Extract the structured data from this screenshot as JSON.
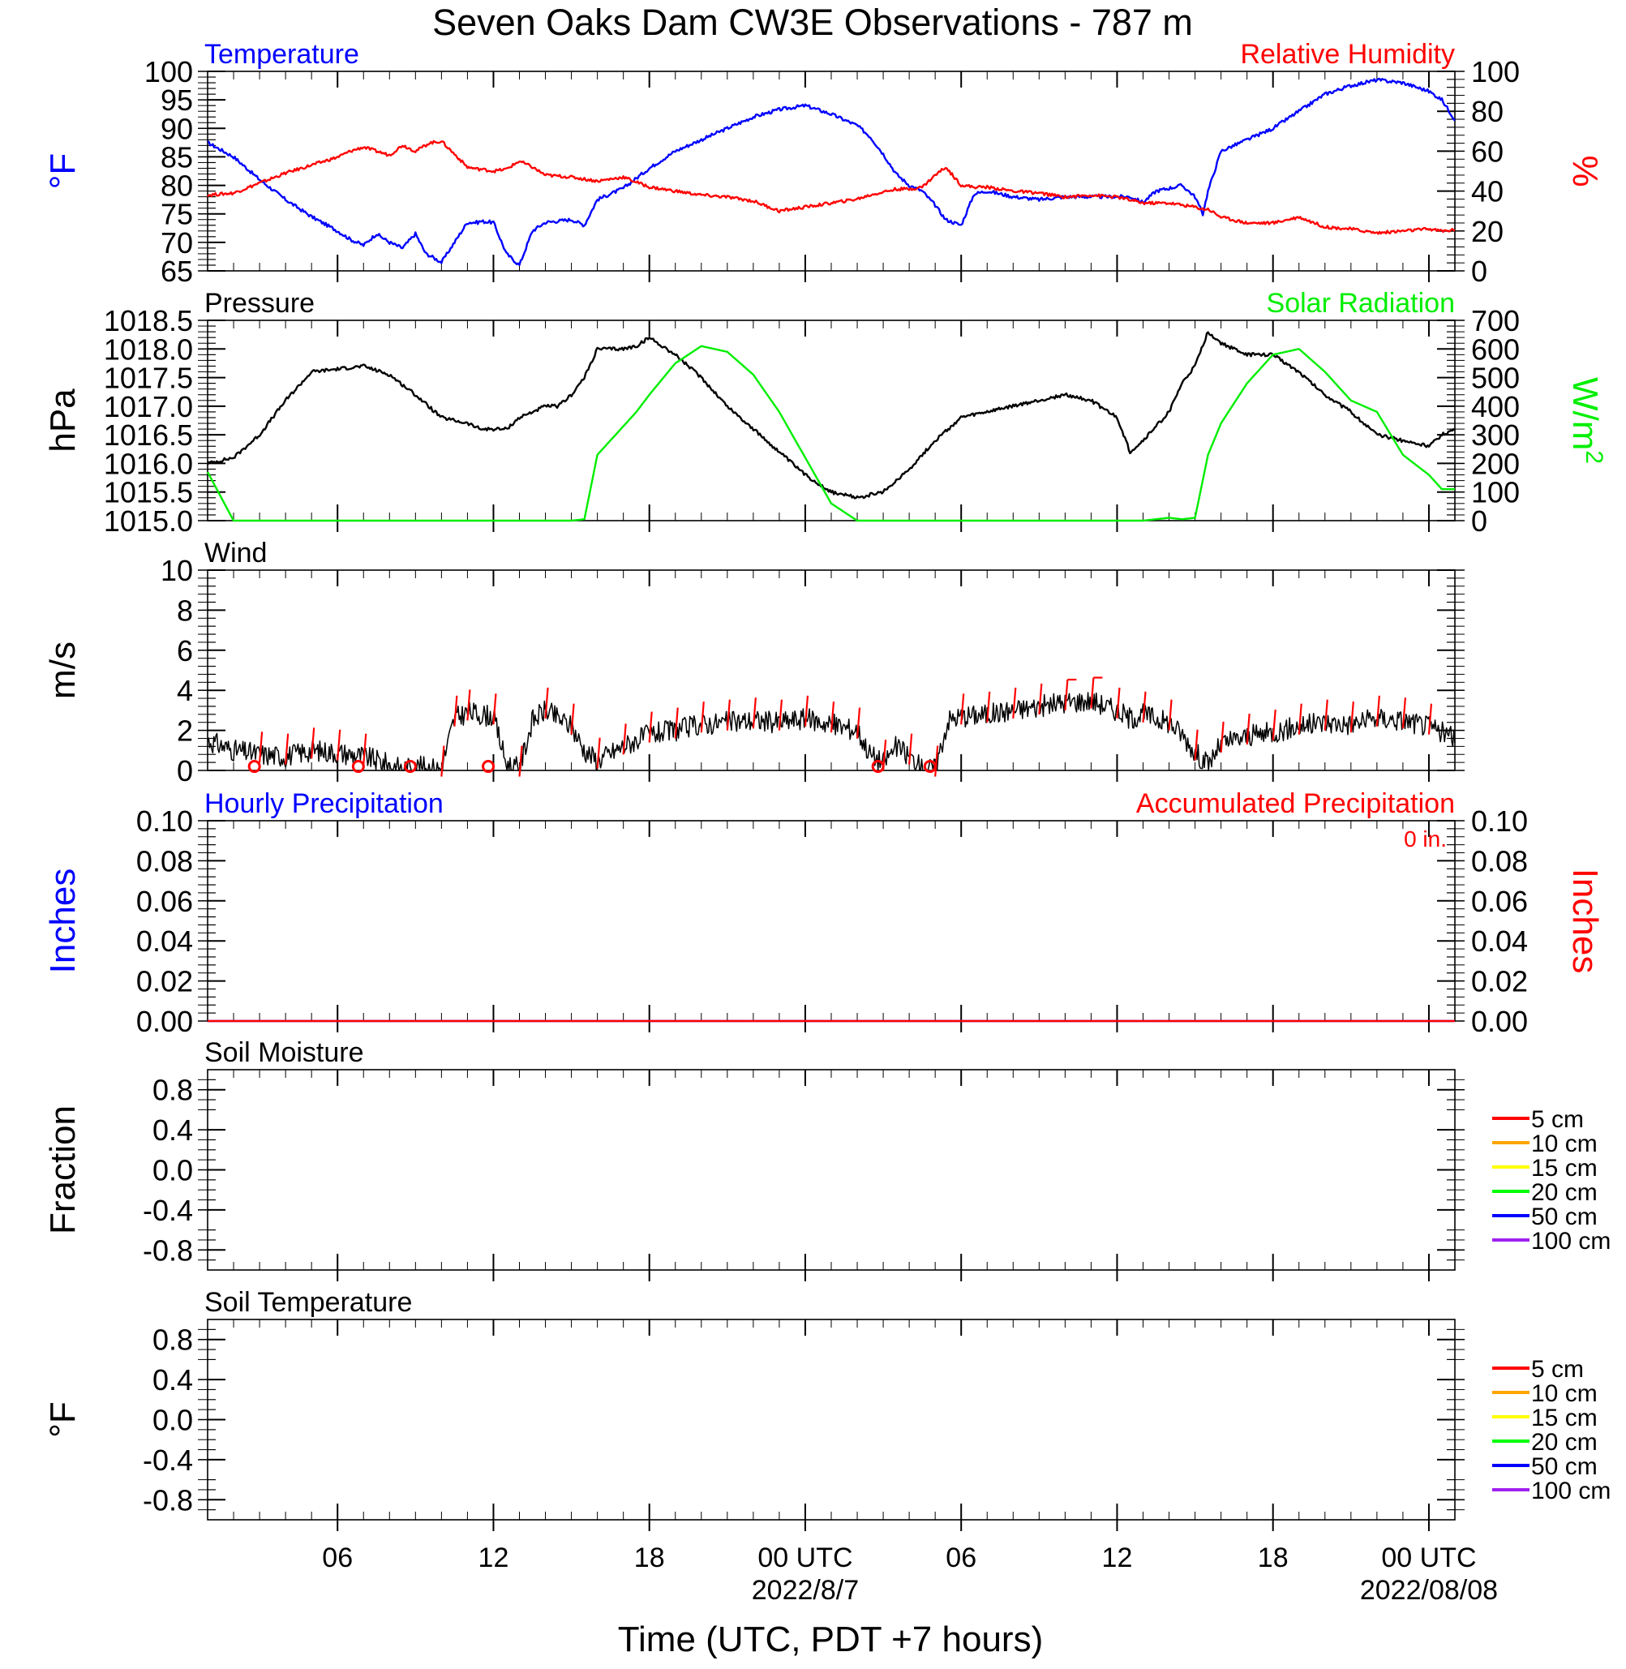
{
  "title": "Seven Oaks Dam CW3E Observations - 787 m",
  "xaxis": {
    "label": "Time (UTC, PDT +7 hours)",
    "range_hours": [
      0,
      48
    ],
    "ticks": [
      {
        "hour": 5,
        "label": "06"
      },
      {
        "hour": 11,
        "label": "12"
      },
      {
        "hour": 17,
        "label": "18"
      },
      {
        "hour": 23,
        "label": "00 UTC"
      },
      {
        "hour": 29,
        "label": "06"
      },
      {
        "hour": 35,
        "label": "12"
      },
      {
        "hour": 41,
        "label": "18"
      },
      {
        "hour": 47,
        "label": "00 UTC"
      }
    ],
    "date_labels": [
      {
        "hour": 23,
        "label": "2022/8/7"
      },
      {
        "hour": 47,
        "label": "2022/08/08"
      }
    ]
  },
  "colors": {
    "temperature": "#0000ff",
    "relative_humidity": "#ff0000",
    "pressure": "#000000",
    "solar_radiation": "#00ee00",
    "wind": "#000000",
    "wind_barbs": "#ff0000",
    "hourly_precip": "#0000ff",
    "accumulated_precip": "#ff0000"
  },
  "chart_data": [
    {
      "type": "line",
      "panel": "temperature-humidity",
      "left_title": "Temperature",
      "right_title": "Relative Humidity",
      "ylabel": "°F",
      "ylabel_right": "%",
      "ylim": [
        65,
        100
      ],
      "yticks": [
        "65",
        "70",
        "75",
        "80",
        "85",
        "90",
        "95",
        "100"
      ],
      "ylim_right": [
        0,
        100
      ],
      "yticks_right": [
        "0",
        "20",
        "40",
        "60",
        "80",
        "100"
      ],
      "x_hours": [
        0,
        1,
        2,
        3,
        4,
        5,
        5.5,
        6,
        6.5,
        7,
        7.5,
        8,
        8.4,
        8.5,
        9,
        10,
        10.4,
        10.5,
        11,
        11.5,
        12,
        12.5,
        13,
        14,
        14.5,
        15,
        16,
        17,
        18,
        19,
        20,
        21,
        22,
        23,
        24,
        25,
        25.5,
        26,
        26.5,
        27,
        27.5,
        28,
        28.4,
        29,
        29.5,
        30,
        31,
        32,
        33,
        34,
        35,
        35.5,
        36,
        36.5,
        37,
        37.5,
        38,
        38.3,
        38.5,
        39,
        40,
        41,
        42,
        43,
        44,
        45,
        46,
        47,
        47.5,
        48
      ],
      "series": [
        {
          "name": "Temperature",
          "axis": "left",
          "values": [
            87.5,
            85,
            81,
            77.5,
            74.5,
            72,
            70.5,
            69.5,
            71.5,
            70,
            69,
            71.5,
            68,
            67.8,
            66.5,
            73.5,
            73.5,
            73.7,
            73.5,
            68,
            66,
            72,
            73.5,
            74,
            73,
            77.5,
            79.5,
            83,
            86,
            88,
            90,
            92,
            93.3,
            94,
            92.5,
            90.5,
            88.5,
            85.5,
            82,
            80,
            79,
            76.5,
            74,
            73,
            78.5,
            79,
            78,
            77.5,
            78,
            78,
            78,
            78,
            77,
            79,
            79.5,
            80,
            78,
            75,
            79,
            86,
            88,
            90,
            93,
            96,
            97.5,
            98.5,
            98,
            96.5,
            95,
            91.5
          ]
        },
        {
          "name": "Relative Humidity",
          "axis": "right",
          "values": [
            38,
            39,
            44,
            49,
            53,
            57,
            60,
            62,
            60,
            58,
            63,
            60,
            63,
            64,
            65,
            52,
            51,
            51,
            50,
            51,
            55,
            52,
            48,
            47,
            46,
            45,
            47,
            42,
            40,
            38,
            37,
            35,
            30,
            32,
            34,
            36,
            38,
            39.5,
            41,
            41,
            42,
            48,
            52,
            43,
            42,
            42,
            40,
            39,
            37,
            38,
            37,
            35.5,
            34,
            34,
            34,
            33,
            32,
            31,
            31,
            27,
            24,
            24,
            27,
            22,
            21,
            19,
            20,
            21,
            20,
            20.5
          ]
        }
      ]
    },
    {
      "type": "line",
      "panel": "pressure-solar",
      "left_title": "Pressure",
      "right_title": "Solar Radiation",
      "ylabel": "hPa",
      "ylabel_right": "W/m",
      "ylabel_right_superscript": "2",
      "ylim": [
        1015.0,
        1018.5
      ],
      "yticks": [
        "1015.0",
        "1015.5",
        "1016.0",
        "1016.5",
        "1017.0",
        "1017.5",
        "1018.0",
        "1018.5"
      ],
      "ylim_right": [
        0,
        700
      ],
      "yticks_right": [
        "0",
        "100",
        "200",
        "300",
        "400",
        "500",
        "600",
        "700"
      ],
      "x_hours": [
        0,
        1,
        2,
        3,
        4,
        5,
        6,
        7,
        8,
        9,
        10,
        10.5,
        11,
        11.5,
        12,
        13,
        13.5,
        14,
        14.5,
        15,
        16,
        16.5,
        17,
        18,
        19,
        20,
        21,
        22,
        23,
        24,
        25,
        26,
        27,
        28,
        29,
        30,
        31,
        32,
        33,
        34,
        35,
        35.5,
        36,
        37,
        37.5,
        38,
        38.5,
        39,
        40,
        41,
        42,
        43,
        44,
        45,
        46,
        47,
        47.5,
        48
      ],
      "series": [
        {
          "name": "Pressure",
          "axis": "left",
          "values": [
            1016.0,
            1016.1,
            1016.5,
            1017.1,
            1017.6,
            1017.65,
            1017.7,
            1017.55,
            1017.2,
            1016.8,
            1016.7,
            1016.6,
            1016.6,
            1016.6,
            1016.8,
            1017.0,
            1017.0,
            1017.2,
            1017.5,
            1018.0,
            1018.0,
            1018.05,
            1018.2,
            1017.9,
            1017.5,
            1017.0,
            1016.6,
            1016.2,
            1015.8,
            1015.5,
            1015.4,
            1015.5,
            1015.9,
            1016.4,
            1016.8,
            1016.9,
            1017.0,
            1017.1,
            1017.2,
            1017.1,
            1016.8,
            1016.2,
            1016.4,
            1016.9,
            1017.4,
            1017.7,
            1018.3,
            1018.1,
            1017.9,
            1017.9,
            1017.6,
            1017.2,
            1016.9,
            1016.5,
            1016.4,
            1016.3,
            1016.5,
            1016.6
          ]
        },
        {
          "name": "Solar Radiation",
          "axis": "right",
          "values": [
            170,
            0,
            0,
            0,
            0,
            0,
            0,
            0,
            0,
            0,
            0,
            0,
            0,
            0,
            0,
            0,
            0,
            0,
            5,
            230,
            330,
            380,
            440,
            550,
            610,
            590,
            510,
            380,
            220,
            60,
            0,
            0,
            0,
            0,
            0,
            0,
            0,
            0,
            0,
            0,
            0,
            0,
            0,
            10,
            5,
            10,
            230,
            340,
            480,
            580,
            600,
            520,
            420,
            380,
            230,
            160,
            110,
            110
          ]
        }
      ]
    },
    {
      "type": "line",
      "panel": "wind",
      "left_title": "Wind",
      "ylabel": "m/s",
      "ylim": [
        0,
        10
      ],
      "yticks": [
        "0",
        "2",
        "4",
        "6",
        "8",
        "10"
      ],
      "x_hours": [
        0,
        1,
        2,
        3,
        4,
        5,
        6,
        7,
        7.5,
        8,
        9,
        9.5,
        10,
        10.5,
        11,
        11.5,
        12,
        12.5,
        13,
        14,
        14.5,
        15,
        16,
        17,
        18,
        19,
        20,
        21,
        22,
        23,
        24,
        25,
        25.5,
        26,
        26.5,
        27,
        27.5,
        28,
        28.5,
        29,
        30,
        31,
        32,
        33,
        34,
        35,
        35.5,
        36,
        37,
        37.5,
        38,
        38.5,
        39,
        40,
        41,
        42,
        43,
        44,
        45,
        46,
        47,
        48
      ],
      "series": [
        {
          "name": "Wind speed",
          "axis": "left",
          "values": [
            1.5,
            1.0,
            0.8,
            0.7,
            1.0,
            0.9,
            0.7,
            0.3,
            0.1,
            0.2,
            0.1,
            2.6,
            2.9,
            2.8,
            2.7,
            0.3,
            0.1,
            2.5,
            3.0,
            2.2,
            1.0,
            0.5,
            1.2,
            1.8,
            2.0,
            2.3,
            2.4,
            2.5,
            2.4,
            2.6,
            2.3,
            2.0,
            0.8,
            0.4,
            1.2,
            0.7,
            0.1,
            0.1,
            2.5,
            2.7,
            2.8,
            3.0,
            3.2,
            3.4,
            3.5,
            3.0,
            2.6,
            2.8,
            2.4,
            1.8,
            0.9,
            0.3,
            1.3,
            1.7,
            1.9,
            2.2,
            2.4,
            2.3,
            2.6,
            2.5,
            2.2,
            1.6
          ]
        }
      ],
      "barbs_hours": [
        2,
        3,
        4,
        5,
        6,
        9,
        9.5,
        10,
        11,
        12,
        13,
        14,
        15,
        16,
        17,
        18,
        19,
        20,
        21,
        22,
        23,
        24,
        25,
        26,
        27,
        28,
        29,
        30,
        31,
        32,
        33,
        34,
        35,
        36,
        37,
        38,
        39,
        40,
        41,
        42,
        43,
        44,
        45,
        46,
        47
      ],
      "calm_hours": [
        1.8,
        5.8,
        7.8,
        10.8,
        25.8,
        27.8
      ]
    },
    {
      "type": "line",
      "panel": "precipitation",
      "left_title": "Hourly Precipitation",
      "right_title": "Accumulated Precipitation",
      "annotation": "0 in.",
      "ylabel": "Inches",
      "ylabel_right": "Inches",
      "ylim": [
        0.0,
        0.1
      ],
      "yticks": [
        "0.00",
        "0.02",
        "0.04",
        "0.06",
        "0.08",
        "0.10"
      ],
      "ylim_right": [
        0.0,
        0.1
      ],
      "yticks_right": [
        "0.00",
        "0.02",
        "0.04",
        "0.06",
        "0.08",
        "0.10"
      ],
      "x_hours": [
        0,
        48
      ],
      "series": [
        {
          "name": "Hourly Precipitation",
          "axis": "left",
          "values": [
            0.0,
            0.0
          ]
        },
        {
          "name": "Accumulated Precipitation",
          "axis": "right",
          "values": [
            0.0,
            0.0
          ]
        }
      ]
    },
    {
      "type": "line",
      "panel": "soil-moisture",
      "left_title": "Soil Moisture",
      "ylabel": "Fraction",
      "ylim": [
        -1.0,
        1.0
      ],
      "yticks": [
        "-0.8",
        "-0.4",
        "0.0",
        "0.4",
        "0.8"
      ],
      "legend": [
        {
          "label": "5 cm",
          "color": "#ff0000"
        },
        {
          "label": "10 cm",
          "color": "#ffa500"
        },
        {
          "label": "15 cm",
          "color": "#ffff00"
        },
        {
          "label": "20 cm",
          "color": "#00ff00"
        },
        {
          "label": "50 cm",
          "color": "#0000ff"
        },
        {
          "label": "100 cm",
          "color": "#a020f0"
        }
      ]
    },
    {
      "type": "line",
      "panel": "soil-temperature",
      "left_title": "Soil Temperature",
      "ylabel": "°F",
      "ylim": [
        -1.0,
        1.0
      ],
      "yticks": [
        "-0.8",
        "-0.4",
        "0.0",
        "0.4",
        "0.8"
      ],
      "legend": [
        {
          "label": "5 cm",
          "color": "#ff0000"
        },
        {
          "label": "10 cm",
          "color": "#ffa500"
        },
        {
          "label": "15 cm",
          "color": "#ffff00"
        },
        {
          "label": "20 cm",
          "color": "#00ff00"
        },
        {
          "label": "50 cm",
          "color": "#0000ff"
        },
        {
          "label": "100 cm",
          "color": "#a020f0"
        }
      ]
    }
  ]
}
